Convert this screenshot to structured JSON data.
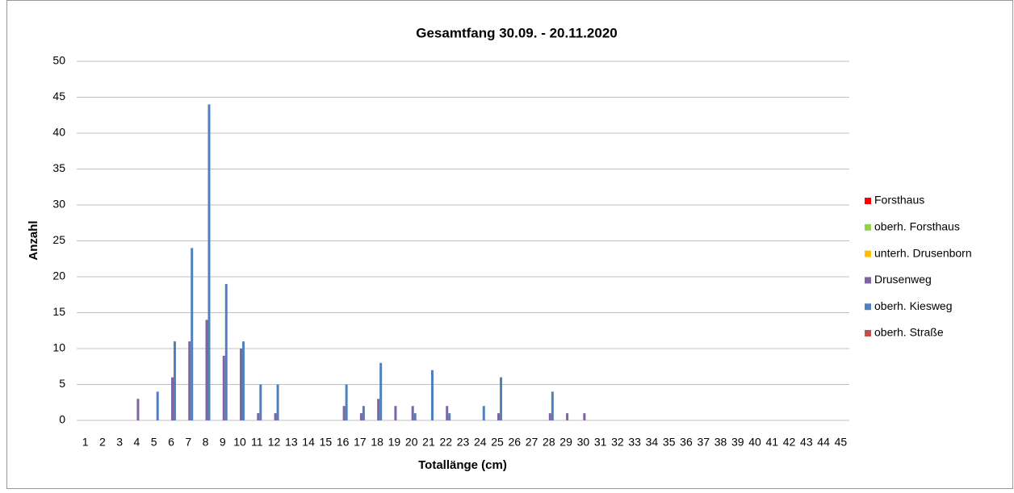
{
  "chart_data": {
    "type": "bar",
    "title": "Gesamtfang 30.09. - 20.11.2020",
    "x_label": "Totallänge (cm)",
    "y_label": "Anzahl",
    "categories": [
      "1",
      "2",
      "3",
      "4",
      "5",
      "6",
      "7",
      "8",
      "9",
      "10",
      "11",
      "12",
      "13",
      "14",
      "15",
      "16",
      "17",
      "18",
      "19",
      "20",
      "21",
      "22",
      "23",
      "24",
      "25",
      "26",
      "27",
      "28",
      "29",
      "30",
      "31",
      "32",
      "33",
      "34",
      "35",
      "36",
      "37",
      "38",
      "39",
      "40",
      "41",
      "42",
      "43",
      "44",
      "45"
    ],
    "series": [
      {
        "name": "Forsthaus",
        "color": "#ff0000",
        "values": [
          0,
          0,
          0,
          0,
          0,
          0,
          0,
          0,
          0,
          0,
          0,
          0,
          0,
          0,
          0,
          0,
          0,
          0,
          0,
          0,
          0,
          0,
          0,
          0,
          0,
          0,
          0,
          0,
          0,
          0,
          0,
          0,
          0,
          0,
          0,
          0,
          0,
          0,
          0,
          0,
          0,
          0,
          0,
          0,
          0
        ]
      },
      {
        "name": "oberh. Forsthaus",
        "color": "#92d050",
        "values": [
          0,
          0,
          0,
          0,
          0,
          0,
          0,
          0,
          0,
          0,
          0,
          0,
          0,
          0,
          0,
          0,
          0,
          0,
          0,
          0,
          0,
          0,
          0,
          0,
          0,
          0,
          0,
          0,
          0,
          0,
          0,
          0,
          0,
          0,
          0,
          0,
          0,
          0,
          0,
          0,
          0,
          0,
          0,
          0,
          0
        ]
      },
      {
        "name": "unterh. Drusenborn",
        "color": "#ffc000",
        "values": [
          0,
          0,
          0,
          0,
          0,
          0,
          0,
          0,
          0,
          0,
          0,
          0,
          0,
          0,
          0,
          0,
          0,
          0,
          0,
          0,
          0,
          0,
          0,
          0,
          0,
          0,
          0,
          0,
          0,
          0,
          0,
          0,
          0,
          0,
          0,
          0,
          0,
          0,
          0,
          0,
          0,
          0,
          0,
          0,
          0
        ]
      },
      {
        "name": "Drusenweg",
        "color": "#8064a2",
        "values": [
          0,
          0,
          0,
          3,
          0,
          6,
          11,
          14,
          9,
          10,
          1,
          1,
          0,
          0,
          0,
          2,
          1,
          3,
          2,
          2,
          0,
          2,
          0,
          0,
          1,
          0,
          0,
          1,
          1,
          1,
          0,
          0,
          0,
          0,
          0,
          0,
          0,
          0,
          0,
          0,
          0,
          0,
          0,
          0,
          0
        ]
      },
      {
        "name": "oberh. Kiesweg",
        "color": "#4f81bd",
        "values": [
          0,
          0,
          0,
          0,
          4,
          11,
          24,
          44,
          19,
          11,
          5,
          5,
          0,
          0,
          0,
          5,
          2,
          8,
          0,
          1,
          7,
          1,
          0,
          2,
          6,
          0,
          0,
          4,
          0,
          0,
          0,
          0,
          0,
          0,
          0,
          0,
          0,
          0,
          0,
          0,
          0,
          0,
          0,
          0,
          0
        ]
      },
      {
        "name": "oberh. Straße",
        "color": "#c0504d",
        "values": [
          0,
          0,
          0,
          0,
          0,
          0,
          0,
          0,
          0,
          0,
          0,
          0,
          0,
          0,
          0,
          0,
          0,
          0,
          0,
          0,
          0,
          0,
          0,
          0,
          0,
          0,
          0,
          0,
          0,
          0,
          0,
          0,
          0,
          0,
          0,
          0,
          0,
          0,
          0,
          0,
          0,
          0,
          0,
          0,
          0
        ]
      }
    ],
    "ylim": [
      0,
      50
    ],
    "yticks": [
      0,
      5,
      10,
      15,
      20,
      25,
      30,
      35,
      40,
      45,
      50
    ],
    "grid": true,
    "legend": "right"
  }
}
